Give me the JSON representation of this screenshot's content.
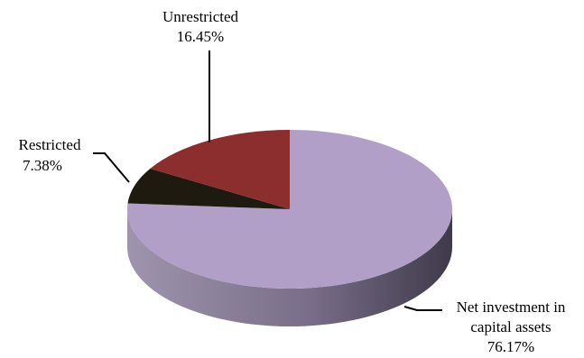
{
  "chart_data": {
    "type": "pie",
    "style": "3d",
    "slices": [
      {
        "label_lines": [
          "Net investment in",
          "capital assets"
        ],
        "value_text": "76.17%",
        "value": 76.17,
        "color": "#b19fc8",
        "side_color": "#7f7290"
      },
      {
        "label_lines": [
          "Restricted"
        ],
        "value_text": "7.38%",
        "value": 7.38,
        "color": "#1e1a10",
        "side_color": "#0d0b06"
      },
      {
        "label_lines": [
          "Unrestricted"
        ],
        "value_text": "16.45%",
        "value": 16.45,
        "color": "#8d2e2e",
        "side_color": "#5c1e1e"
      }
    ]
  }
}
